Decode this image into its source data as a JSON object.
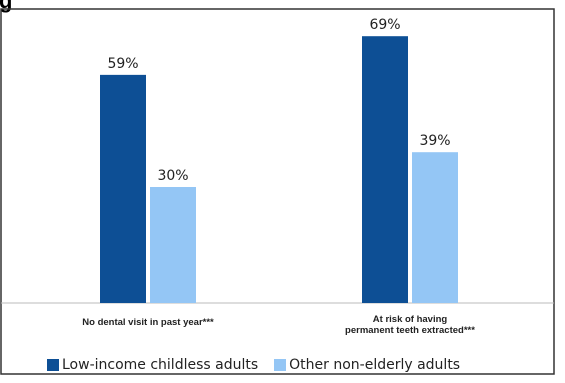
{
  "header": {
    "title_fragment": "g"
  },
  "chart_data": {
    "type": "bar",
    "categories": [
      [
        "No dental visit in past year***"
      ],
      [
        "At risk of having",
        "permanent teeth extracted***"
      ]
    ],
    "series": [
      {
        "name": "Low-income childless adults",
        "values": [
          59,
          69
        ],
        "labels": [
          "59%",
          "69%"
        ]
      },
      {
        "name": "Other non-elderly adults",
        "values": [
          30,
          39
        ],
        "labels": [
          "30%",
          "39%"
        ]
      }
    ],
    "ylim": [
      0,
      75
    ],
    "grid": false,
    "legend_position": "bottom",
    "colors": {
      "series_0": "#0d4f95",
      "series_1": "#94c6f5",
      "frame": "#333333"
    }
  }
}
